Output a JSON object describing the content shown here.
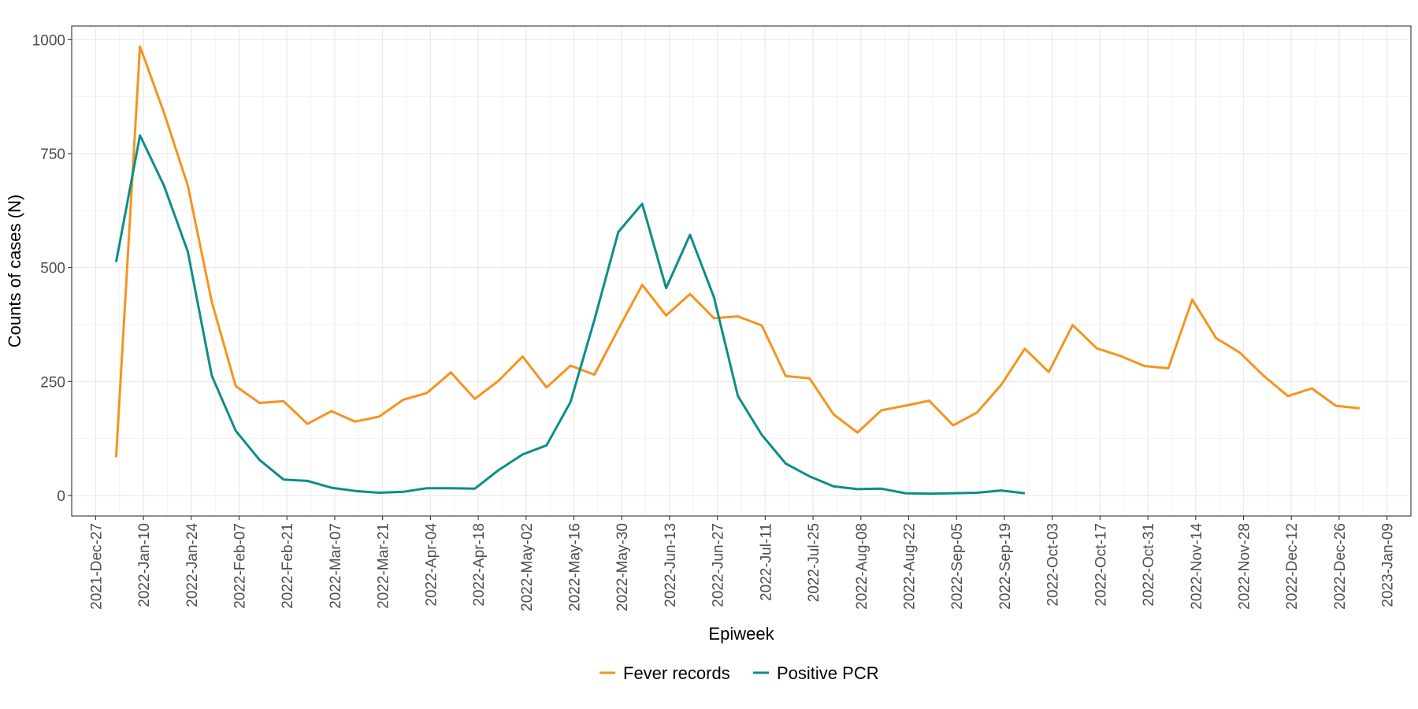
{
  "chart_data": {
    "type": "line",
    "xlabel": "Epiweek",
    "ylabel": "Counts of cases (N)",
    "xlim": [
      "2021-12-20",
      "2023-01-16"
    ],
    "ylim": [
      -45,
      1030
    ],
    "x_ticks": [
      "2021-Dec-27",
      "2022-Jan-10",
      "2022-Jan-24",
      "2022-Feb-07",
      "2022-Feb-21",
      "2022-Mar-07",
      "2022-Mar-21",
      "2022-Apr-04",
      "2022-Apr-18",
      "2022-May-02",
      "2022-May-16",
      "2022-May-30",
      "2022-Jun-13",
      "2022-Jun-27",
      "2022-Jul-11",
      "2022-Jul-25",
      "2022-Aug-08",
      "2022-Aug-22",
      "2022-Sep-05",
      "2022-Sep-19",
      "2022-Oct-03",
      "2022-Oct-17",
      "2022-Oct-31",
      "2022-Nov-14",
      "2022-Nov-28",
      "2022-Dec-12",
      "2022-Dec-26",
      "2023-Jan-09"
    ],
    "y_ticks": [
      0,
      250,
      500,
      750,
      1000
    ],
    "grid": true,
    "legend": "bottom",
    "series": [
      {
        "name": "Fever records",
        "color": "#F7931E",
        "x": [
          "2022-01-02",
          "2022-01-09",
          "2022-01-16",
          "2022-01-23",
          "2022-01-30",
          "2022-02-06",
          "2022-02-13",
          "2022-02-20",
          "2022-02-27",
          "2022-03-06",
          "2022-03-13",
          "2022-03-20",
          "2022-03-27",
          "2022-04-03",
          "2022-04-10",
          "2022-04-17",
          "2022-04-24",
          "2022-05-01",
          "2022-05-08",
          "2022-05-15",
          "2022-05-22",
          "2022-05-29",
          "2022-06-05",
          "2022-06-12",
          "2022-06-19",
          "2022-06-26",
          "2022-07-03",
          "2022-07-10",
          "2022-07-17",
          "2022-07-24",
          "2022-07-31",
          "2022-08-07",
          "2022-08-14",
          "2022-08-21",
          "2022-08-28",
          "2022-09-04",
          "2022-09-11",
          "2022-09-18",
          "2022-09-25",
          "2022-10-02",
          "2022-10-09",
          "2022-10-16",
          "2022-10-23",
          "2022-10-30",
          "2022-11-06",
          "2022-11-13",
          "2022-11-20",
          "2022-11-27",
          "2022-12-04",
          "2022-12-11",
          "2022-12-18",
          "2022-12-25",
          "2023-01-01"
        ],
        "y": [
          84,
          985,
          840,
          680,
          425,
          240,
          203,
          207,
          157,
          185,
          162,
          173,
          210,
          225,
          270,
          212,
          252,
          305,
          237,
          285,
          265,
          365,
          462,
          395,
          442,
          389,
          393,
          373,
          262,
          257,
          178,
          138,
          187,
          197,
          208,
          154,
          182,
          242,
          322,
          271,
          374,
          323,
          306,
          284,
          279,
          430,
          345,
          313,
          262,
          218,
          235,
          197,
          191
        ]
      },
      {
        "name": "Positive PCR",
        "color": "#0B8E89",
        "x": [
          "2022-01-02",
          "2022-01-09",
          "2022-01-16",
          "2022-01-23",
          "2022-01-30",
          "2022-02-06",
          "2022-02-13",
          "2022-02-20",
          "2022-02-27",
          "2022-03-06",
          "2022-03-13",
          "2022-03-20",
          "2022-03-27",
          "2022-04-03",
          "2022-04-10",
          "2022-04-17",
          "2022-04-24",
          "2022-05-01",
          "2022-05-08",
          "2022-05-15",
          "2022-05-22",
          "2022-05-29",
          "2022-06-05",
          "2022-06-12",
          "2022-06-19",
          "2022-06-26",
          "2022-07-03",
          "2022-07-10",
          "2022-07-17",
          "2022-07-24",
          "2022-07-31",
          "2022-08-07",
          "2022-08-14",
          "2022-08-21",
          "2022-08-28",
          "2022-09-04",
          "2022-09-11",
          "2022-09-18",
          "2022-09-25"
        ],
        "y": [
          512,
          790,
          680,
          535,
          263,
          142,
          78,
          35,
          32,
          17,
          10,
          6,
          8,
          16,
          16,
          15,
          56,
          90,
          110,
          205,
          385,
          578,
          640,
          455,
          572,
          435,
          218,
          133,
          70,
          42,
          20,
          14,
          15,
          5,
          4,
          5,
          6,
          11,
          5
        ]
      }
    ]
  }
}
